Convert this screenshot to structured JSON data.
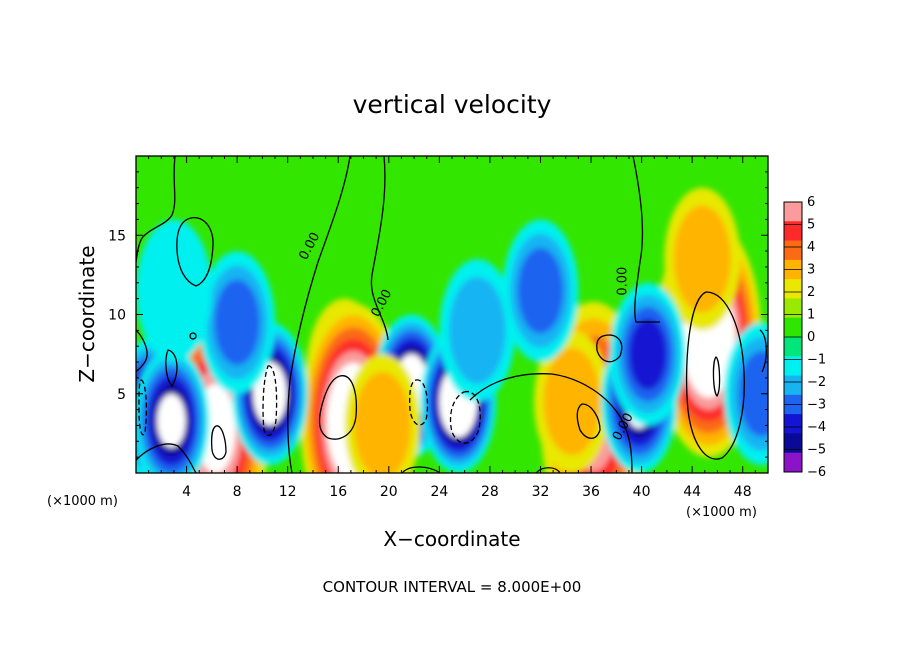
{
  "chart_data": {
    "type": "heatmap",
    "title": "vertical velocity",
    "xlabel": "X−coordinate",
    "ylabel": "Z−coordinate",
    "x_unit_left": "(×1000 m)",
    "x_unit_right": "(×1000 m)",
    "xlim": [
      0,
      50
    ],
    "ylim": [
      0,
      20
    ],
    "x_ticks": [
      4,
      8,
      12,
      16,
      20,
      24,
      28,
      32,
      36,
      40,
      44,
      48
    ],
    "y_ticks": [
      5,
      10,
      15
    ],
    "contour_note": "CONTOUR INTERVAL = 8.000E+00",
    "contour_labels": [
      {
        "text": "0.00",
        "x": 14,
        "y": 14.2,
        "angle": -62
      },
      {
        "text": "0.00",
        "x": 19.7,
        "y": 10.6,
        "angle": -62
      },
      {
        "text": "0.00",
        "x": 38.8,
        "y": 12.1,
        "angle": -90
      },
      {
        "text": "0.00",
        "x": 38.8,
        "y": 2.8,
        "angle": -62
      }
    ],
    "colorbar": {
      "ticks": [
        "6",
        "5",
        "4",
        "3",
        "2",
        "1",
        "0",
        "−1",
        "−2",
        "−3",
        "−4",
        "−5",
        "−6"
      ],
      "range": [
        -6,
        6
      ],
      "colors": [
        "#fa9c9c",
        "#fd2a2a",
        "#fb6a15",
        "#ffb400",
        "#e8e800",
        "#9ae900",
        "#2ee600",
        "#00e67a",
        "#00f0f0",
        "#18b4f2",
        "#1e64f0",
        "#1414d2",
        "#0a0a96",
        "#8c14c8"
      ]
    },
    "field_features": [
      {
        "x": 16.5,
        "z": 6.5,
        "w": 5.5
      },
      {
        "x": 17.2,
        "z": 3.2,
        "w": 9
      },
      {
        "x": 45.3,
        "z": 8.5,
        "w": 9
      },
      {
        "x": 44.8,
        "z": 13.5,
        "w": 3
      },
      {
        "x": 6.3,
        "z": 2.8,
        "w": 6.5
      },
      {
        "x": 36.2,
        "z": 3.3,
        "w": 6
      },
      {
        "x": 34.5,
        "z": 4.5,
        "w": 3
      },
      {
        "x": 1.2,
        "z": 4,
        "w": -7
      },
      {
        "x": 2.8,
        "z": 3.3,
        "w": -7
      },
      {
        "x": 10.6,
        "z": 5,
        "w": -8
      },
      {
        "x": 21.8,
        "z": 5.5,
        "w": -8
      },
      {
        "x": 25.5,
        "z": 4.5,
        "w": -9
      },
      {
        "x": 8,
        "z": 9.5,
        "w": -4
      },
      {
        "x": 27,
        "z": 9,
        "w": -2.5
      },
      {
        "x": 32,
        "z": 11.5,
        "w": -3.5
      },
      {
        "x": 39.8,
        "z": 4.5,
        "w": -7
      },
      {
        "x": 40.5,
        "z": 7.5,
        "w": -4.5
      },
      {
        "x": 49.5,
        "z": 5,
        "w": -4
      },
      {
        "x": 3,
        "z": 11.5,
        "w": -1.5
      },
      {
        "x": 19.5,
        "z": 3,
        "w": 3
      }
    ]
  }
}
